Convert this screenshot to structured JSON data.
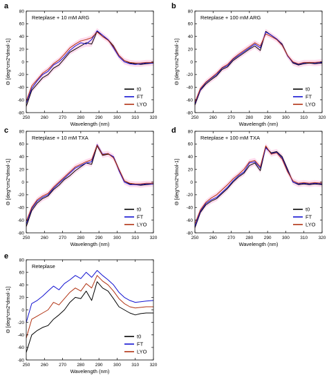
{
  "panels": [
    {
      "letter": "a",
      "title": "Reteplase + 10 mM ARG",
      "xlabel": "Wavelength (nm)",
      "ylabel": "Θ [deg*cm2*dmol-1]"
    },
    {
      "letter": "b",
      "title": "Reteplase + 100 mM ARG",
      "xlabel": "Wavelength (nm)",
      "ylabel": "Θ [deg*cm2*dmol-1]"
    },
    {
      "letter": "c",
      "title": "Reteplase + 10 mM TXA",
      "xlabel": "Wavelength (nm)",
      "ylabel": "Θ [deg*cm2*dmol-1]"
    },
    {
      "letter": "d",
      "title": "Reteplase + 100 mM TXA",
      "xlabel": "Wavelength (nm)",
      "ylabel": "Θ [deg*cm2*dmol-1]"
    },
    {
      "letter": "e",
      "title": "Reteplase",
      "xlabel": "Wavelength (nm)",
      "ylabel": "Θ [deg*cm2*dmol-1]"
    }
  ],
  "colors": {
    "t0": "#000000",
    "FT": "#1010d0",
    "LYO": "#b03010",
    "band": "#ffb0d8"
  },
  "chart_data": [
    {
      "type": "line",
      "title": "Reteplase + 10 mM ARG",
      "xlabel": "Wavelength (nm)",
      "ylabel": "Θ [deg*cm2*dmol-1]",
      "xlim": [
        250,
        320
      ],
      "ylim": [
        -80,
        80
      ],
      "xticks": [
        250,
        260,
        270,
        280,
        290,
        300,
        310,
        320
      ],
      "yticks": [
        -80,
        -60,
        -40,
        -20,
        0,
        20,
        40,
        60,
        80
      ],
      "legend": "bottom-right",
      "error_band": true,
      "x": [
        250,
        253,
        256,
        259,
        262,
        265,
        268,
        271,
        274,
        277,
        280,
        283,
        286,
        289,
        292,
        295,
        298,
        301,
        304,
        307,
        310,
        313,
        316,
        320
      ],
      "series": [
        {
          "name": "t0",
          "values": [
            -70,
            -45,
            -35,
            -25,
            -20,
            -10,
            -5,
            5,
            15,
            20,
            25,
            30,
            28,
            48,
            40,
            35,
            25,
            10,
            2,
            -2,
            -3,
            -4,
            -3,
            -2
          ]
        },
        {
          "name": "FT",
          "values": [
            -65,
            -42,
            -30,
            -20,
            -15,
            -5,
            0,
            8,
            18,
            25,
            30,
            28,
            35,
            49,
            42,
            35,
            22,
            8,
            0,
            -3,
            -4,
            -3,
            -2,
            -2
          ]
        },
        {
          "name": "LYO",
          "values": [
            -62,
            -38,
            -28,
            -18,
            -12,
            -3,
            3,
            12,
            22,
            28,
            33,
            35,
            38,
            47,
            40,
            34,
            24,
            10,
            2,
            -1,
            -2,
            -2,
            -1,
            -1
          ]
        }
      ]
    },
    {
      "type": "line",
      "title": "Reteplase + 100 mM ARG",
      "xlabel": "Wavelength (nm)",
      "ylabel": "Θ [deg*cm2*dmol-1]",
      "xlim": [
        250,
        320
      ],
      "ylim": [
        -80,
        80
      ],
      "xticks": [
        250,
        260,
        270,
        280,
        290,
        300,
        310,
        320
      ],
      "yticks": [
        -80,
        -60,
        -40,
        -20,
        0,
        20,
        40,
        60,
        80
      ],
      "legend": "bottom-right",
      "error_band": true,
      "x": [
        250,
        253,
        256,
        259,
        262,
        265,
        268,
        271,
        274,
        277,
        280,
        283,
        286,
        289,
        292,
        295,
        298,
        301,
        304,
        307,
        310,
        313,
        316,
        320
      ],
      "series": [
        {
          "name": "t0",
          "values": [
            -68,
            -45,
            -35,
            -28,
            -22,
            -12,
            -8,
            2,
            8,
            14,
            20,
            25,
            18,
            48,
            42,
            36,
            28,
            10,
            -2,
            -5,
            -3,
            -2,
            -3,
            -2
          ]
        },
        {
          "name": "FT",
          "values": [
            -66,
            -44,
            -33,
            -26,
            -20,
            -10,
            -6,
            4,
            10,
            16,
            22,
            28,
            22,
            47,
            42,
            36,
            27,
            9,
            -1,
            -4,
            -2,
            -1,
            -2,
            -1
          ]
        },
        {
          "name": "LYO",
          "values": [
            -64,
            -42,
            -32,
            -25,
            -18,
            -9,
            -4,
            5,
            12,
            18,
            24,
            30,
            25,
            44,
            40,
            35,
            26,
            10,
            0,
            -3,
            -1,
            -1,
            -1,
            0
          ]
        }
      ]
    },
    {
      "type": "line",
      "title": "Reteplase + 10 mM TXA",
      "xlabel": "Wavelength (nm)",
      "ylabel": "Θ [deg*cm2*dmol-1]",
      "xlim": [
        250,
        320
      ],
      "ylim": [
        -80,
        80
      ],
      "xticks": [
        250,
        260,
        270,
        280,
        290,
        300,
        310,
        320
      ],
      "yticks": [
        -80,
        -60,
        -40,
        -20,
        0,
        20,
        40,
        60,
        80
      ],
      "legend": "bottom-right",
      "error_band": true,
      "x": [
        250,
        253,
        256,
        259,
        262,
        265,
        268,
        271,
        274,
        277,
        280,
        283,
        286,
        289,
        292,
        295,
        298,
        301,
        304,
        307,
        310,
        313,
        316,
        320
      ],
      "series": [
        {
          "name": "t0",
          "values": [
            -70,
            -45,
            -33,
            -26,
            -22,
            -12,
            -5,
            4,
            10,
            18,
            24,
            30,
            28,
            57,
            42,
            44,
            40,
            20,
            2,
            -3,
            -4,
            -5,
            -4,
            -3
          ]
        },
        {
          "name": "FT",
          "values": [
            -66,
            -42,
            -30,
            -24,
            -20,
            -10,
            -2,
            6,
            14,
            22,
            26,
            30,
            32,
            59,
            44,
            45,
            40,
            18,
            0,
            -4,
            -4,
            -4,
            -3,
            -3
          ]
        },
        {
          "name": "LYO",
          "values": [
            -62,
            -40,
            -28,
            -22,
            -18,
            -8,
            0,
            8,
            16,
            24,
            28,
            32,
            35,
            58,
            43,
            45,
            38,
            20,
            2,
            -2,
            -3,
            -3,
            -2,
            -2
          ]
        }
      ]
    },
    {
      "type": "line",
      "title": "Reteplase + 100 mM TXA",
      "xlabel": "Wavelength (nm)",
      "ylabel": "Θ [deg*cm2*dmol-1]",
      "xlim": [
        250,
        320
      ],
      "ylim": [
        -80,
        80
      ],
      "xticks": [
        250,
        260,
        270,
        280,
        290,
        300,
        310,
        320
      ],
      "yticks": [
        -80,
        -60,
        -40,
        -20,
        0,
        20,
        40,
        60,
        80
      ],
      "legend": "bottom-right",
      "error_band": true,
      "x": [
        250,
        253,
        256,
        259,
        262,
        265,
        268,
        271,
        274,
        277,
        280,
        283,
        286,
        289,
        292,
        295,
        298,
        301,
        304,
        307,
        310,
        313,
        316,
        320
      ],
      "series": [
        {
          "name": "t0",
          "values": [
            -72,
            -48,
            -36,
            -30,
            -26,
            -18,
            -10,
            0,
            8,
            14,
            26,
            30,
            18,
            55,
            46,
            48,
            40,
            20,
            0,
            -4,
            -3,
            -4,
            -3,
            -4
          ]
        },
        {
          "name": "FT",
          "values": [
            -70,
            -46,
            -34,
            -28,
            -24,
            -16,
            -8,
            2,
            10,
            16,
            30,
            32,
            22,
            54,
            45,
            47,
            38,
            18,
            0,
            -3,
            -2,
            -3,
            -2,
            -3
          ]
        },
        {
          "name": "LYO",
          "values": [
            -66,
            -44,
            -32,
            -25,
            -20,
            -12,
            -4,
            5,
            12,
            20,
            32,
            34,
            24,
            57,
            44,
            46,
            36,
            16,
            2,
            -2,
            -1,
            -2,
            -1,
            -2
          ]
        }
      ]
    },
    {
      "type": "line",
      "title": "Reteplase",
      "xlabel": "Wavelength (nm)",
      "ylabel": "Θ [deg*cm2*dmol-1]",
      "xlim": [
        250,
        320
      ],
      "ylim": [
        -80,
        80
      ],
      "xticks": [
        250,
        260,
        270,
        280,
        290,
        300,
        310,
        320
      ],
      "yticks": [
        -80,
        -60,
        -40,
        -20,
        0,
        20,
        40,
        60,
        80
      ],
      "legend": "bottom-right",
      "error_band": false,
      "x": [
        250,
        253,
        256,
        259,
        262,
        265,
        268,
        271,
        274,
        277,
        280,
        283,
        286,
        289,
        292,
        295,
        298,
        301,
        304,
        307,
        310,
        313,
        316,
        320
      ],
      "series": [
        {
          "name": "t0",
          "values": [
            -68,
            -40,
            -33,
            -28,
            -25,
            -15,
            -8,
            0,
            12,
            20,
            18,
            30,
            15,
            45,
            35,
            30,
            18,
            5,
            0,
            -5,
            -8,
            -6,
            -5,
            -5
          ]
        },
        {
          "name": "FT",
          "values": [
            -20,
            10,
            15,
            22,
            30,
            38,
            32,
            42,
            48,
            55,
            50,
            60,
            52,
            63,
            55,
            48,
            40,
            28,
            20,
            15,
            12,
            13,
            14,
            15
          ]
        },
        {
          "name": "LYO",
          "values": [
            -45,
            -15,
            -10,
            -5,
            0,
            12,
            8,
            18,
            28,
            35,
            30,
            42,
            35,
            55,
            46,
            40,
            30,
            18,
            10,
            5,
            3,
            4,
            5,
            5
          ]
        }
      ]
    }
  ]
}
